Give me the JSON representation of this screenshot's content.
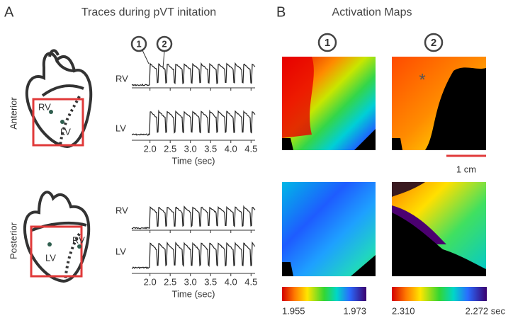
{
  "panel_a": {
    "label": "A",
    "title": "Traces during pVT initation",
    "markers": [
      "1",
      "2"
    ],
    "views": [
      {
        "name": "Anterior",
        "heart_labels": [
          "RV",
          "LV"
        ],
        "trace_labels": [
          "RV",
          "LV"
        ]
      },
      {
        "name": "Posterior",
        "heart_labels": [
          "LV",
          "RV"
        ],
        "trace_labels": [
          "RV",
          "LV"
        ]
      }
    ],
    "time_axis": {
      "label": "Time (sec)",
      "xlim": [
        1.55,
        4.6
      ],
      "xticks": [
        {
          "value": 2,
          "label": "2.0"
        },
        {
          "value": 2.5,
          "label": "2.5"
        },
        {
          "value": 3,
          "label": "3.0"
        },
        {
          "value": 3.5,
          "label": "3.5"
        },
        {
          "value": 4,
          "label": "4.0"
        },
        {
          "value": 4.5,
          "label": "4.5"
        }
      ]
    }
  },
  "panel_b": {
    "label": "B",
    "title": "Activation Maps",
    "map_labels": [
      "1",
      "2"
    ],
    "scale_bar": "1 cm",
    "colorbars": [
      {
        "min_label": "1.955",
        "max_label": "1.973"
      },
      {
        "min_label": "2.310",
        "max_label": "2.272 sec"
      }
    ]
  }
}
